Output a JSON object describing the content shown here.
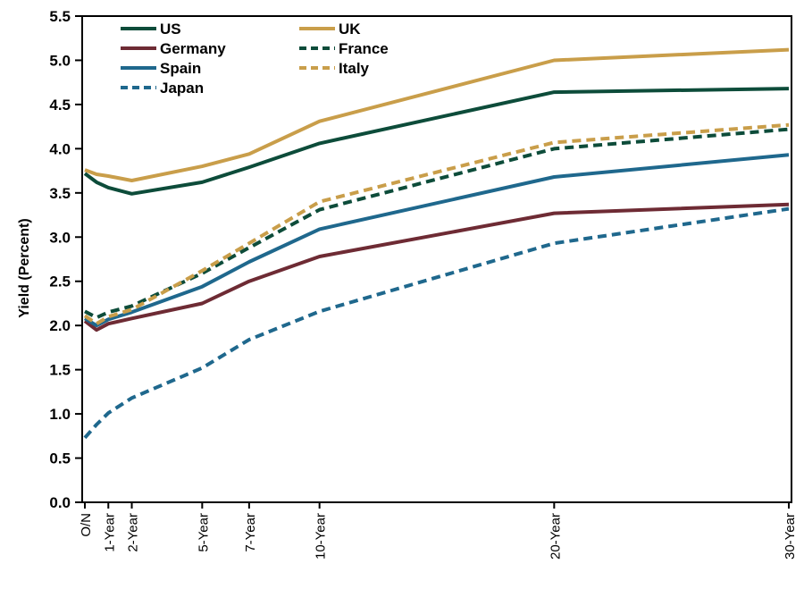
{
  "chart_data": {
    "type": "line",
    "title": "",
    "ylabel": "Yield (Percent)",
    "ylim": [
      0.0,
      5.5
    ],
    "ytick_step": 0.5,
    "xlim_years": [
      0,
      30
    ],
    "grid": false,
    "x_years": [
      0,
      0.5,
      1,
      2,
      5,
      7,
      10,
      20,
      30
    ],
    "x_ticks": [
      {
        "label": "O/N",
        "year": 0
      },
      {
        "label": "1-Year",
        "year": 1
      },
      {
        "label": "2-Year",
        "year": 2
      },
      {
        "label": "5-Year",
        "year": 5
      },
      {
        "label": "7-Year",
        "year": 7
      },
      {
        "label": "10-Year",
        "year": 10
      },
      {
        "label": "20-Year",
        "year": 20
      },
      {
        "label": "30-Year",
        "year": 30
      }
    ],
    "series": [
      {
        "name": "US",
        "color": "#0D4C3A",
        "dash": "solid",
        "values": [
          3.72,
          3.62,
          3.56,
          3.49,
          3.62,
          3.79,
          4.06,
          4.64,
          4.68
        ]
      },
      {
        "name": "UK",
        "color": "#C99E4A",
        "dash": "solid",
        "values": [
          3.76,
          3.71,
          3.69,
          3.64,
          3.8,
          3.94,
          4.31,
          5.0,
          5.12
        ]
      },
      {
        "name": "Germany",
        "color": "#6E2B34",
        "dash": "solid",
        "values": [
          2.05,
          1.95,
          2.02,
          2.08,
          2.25,
          2.5,
          2.78,
          3.27,
          3.37
        ]
      },
      {
        "name": "Spain",
        "color": "#1F688D",
        "dash": "solid",
        "values": [
          2.08,
          2.0,
          2.07,
          2.15,
          2.44,
          2.72,
          3.09,
          3.68,
          3.93
        ]
      },
      {
        "name": "France",
        "color": "#0D4C3A",
        "dash": "dashed",
        "values": [
          2.16,
          2.09,
          2.15,
          2.22,
          2.59,
          2.88,
          3.31,
          4.0,
          4.22
        ]
      },
      {
        "name": "Italy",
        "color": "#C99E4A",
        "dash": "dashed",
        "values": [
          2.11,
          2.02,
          2.1,
          2.18,
          2.62,
          2.93,
          3.4,
          4.07,
          4.27
        ]
      },
      {
        "name": "Japan",
        "color": "#1F688D",
        "dash": "dashed",
        "values": [
          0.73,
          0.88,
          1.01,
          1.18,
          1.52,
          1.84,
          2.16,
          2.93,
          3.32
        ]
      }
    ],
    "legend": {
      "position": "top-left-inside",
      "columns": [
        [
          "US",
          "Germany",
          "Spain",
          "Japan"
        ],
        [
          "UK",
          "France",
          "Italy"
        ]
      ]
    },
    "colors": {
      "axis": "#000000",
      "background": "#FFFFFF",
      "tan": "#C99E4A",
      "dark_green": "#0D4C3A",
      "maroon": "#6E2B34",
      "steel_blue": "#1F688D"
    }
  }
}
